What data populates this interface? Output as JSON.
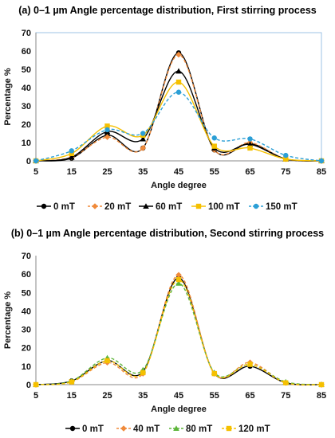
{
  "chart_data": [
    {
      "type": "line",
      "title": "(a) 0–1 µm Angle percentage distribution, First stirring process",
      "xlabel": "Angle degree",
      "ylabel": "Percentage %",
      "x": [
        5,
        15,
        25,
        35,
        45,
        55,
        65,
        75,
        85
      ],
      "xlim": [
        5,
        85
      ],
      "ylim": [
        0,
        70
      ],
      "yticks": [
        0,
        10,
        20,
        30,
        40,
        50,
        60,
        70
      ],
      "grid": false,
      "legend_position": "bottom",
      "series": [
        {
          "name": "0 mT",
          "values": [
            0,
            1.5,
            14,
            7,
            59,
            6,
            9.5,
            1,
            0
          ],
          "color": "#000000",
          "marker": "circle",
          "dash": "solid"
        },
        {
          "name": "20 mT",
          "values": [
            0,
            2,
            13,
            7,
            58,
            6,
            10,
            1,
            0
          ],
          "color": "#f08a3a",
          "marker": "diamond",
          "dash": "dashed"
        },
        {
          "name": "60 mT",
          "values": [
            0,
            2,
            16,
            12,
            49,
            7,
            9,
            1,
            0
          ],
          "color": "#000000",
          "marker": "triangle",
          "dash": "solid"
        },
        {
          "name": "100 mT",
          "values": [
            0,
            4,
            19,
            14,
            43,
            8,
            7,
            1,
            0
          ],
          "color": "#f5c000",
          "marker": "square",
          "dash": "solid"
        },
        {
          "name": "150 mT",
          "values": [
            0,
            5.5,
            17,
            15,
            37.5,
            12.5,
            12,
            3,
            0
          ],
          "color": "#2b9fd6",
          "marker": "circle",
          "dash": "dashed"
        }
      ]
    },
    {
      "type": "line",
      "title": "(b) 0–1 µm Angle percentage distribution, Second stirring process",
      "xlabel": "Angle degree",
      "ylabel": "Percentage %",
      "x": [
        5,
        15,
        25,
        35,
        45,
        55,
        65,
        75,
        85
      ],
      "xlim": [
        5,
        85
      ],
      "ylim": [
        0,
        70
      ],
      "yticks": [
        0,
        10,
        20,
        30,
        40,
        50,
        60,
        70
      ],
      "grid": false,
      "legend_position": "bottom",
      "series": [
        {
          "name": "0 mT",
          "values": [
            0,
            2,
            13,
            7,
            58,
            6,
            10,
            1,
            0
          ],
          "color": "#000000",
          "marker": "circle",
          "dash": "solid"
        },
        {
          "name": "40 mT",
          "values": [
            0,
            1.5,
            12,
            6,
            59.5,
            6,
            12,
            1,
            0
          ],
          "color": "#f08a3a",
          "marker": "diamond",
          "dash": "dashed"
        },
        {
          "name": "80 mT",
          "values": [
            0,
            2,
            14.5,
            8,
            55,
            6.5,
            11,
            1.5,
            0
          ],
          "color": "#5db53a",
          "marker": "triangle",
          "dash": "dashed"
        },
        {
          "name": "120 mT",
          "values": [
            0,
            1.5,
            13,
            6.5,
            57,
            6,
            11,
            1,
            0
          ],
          "color": "#f5c000",
          "marker": "square",
          "dash": "dashed"
        }
      ]
    }
  ]
}
